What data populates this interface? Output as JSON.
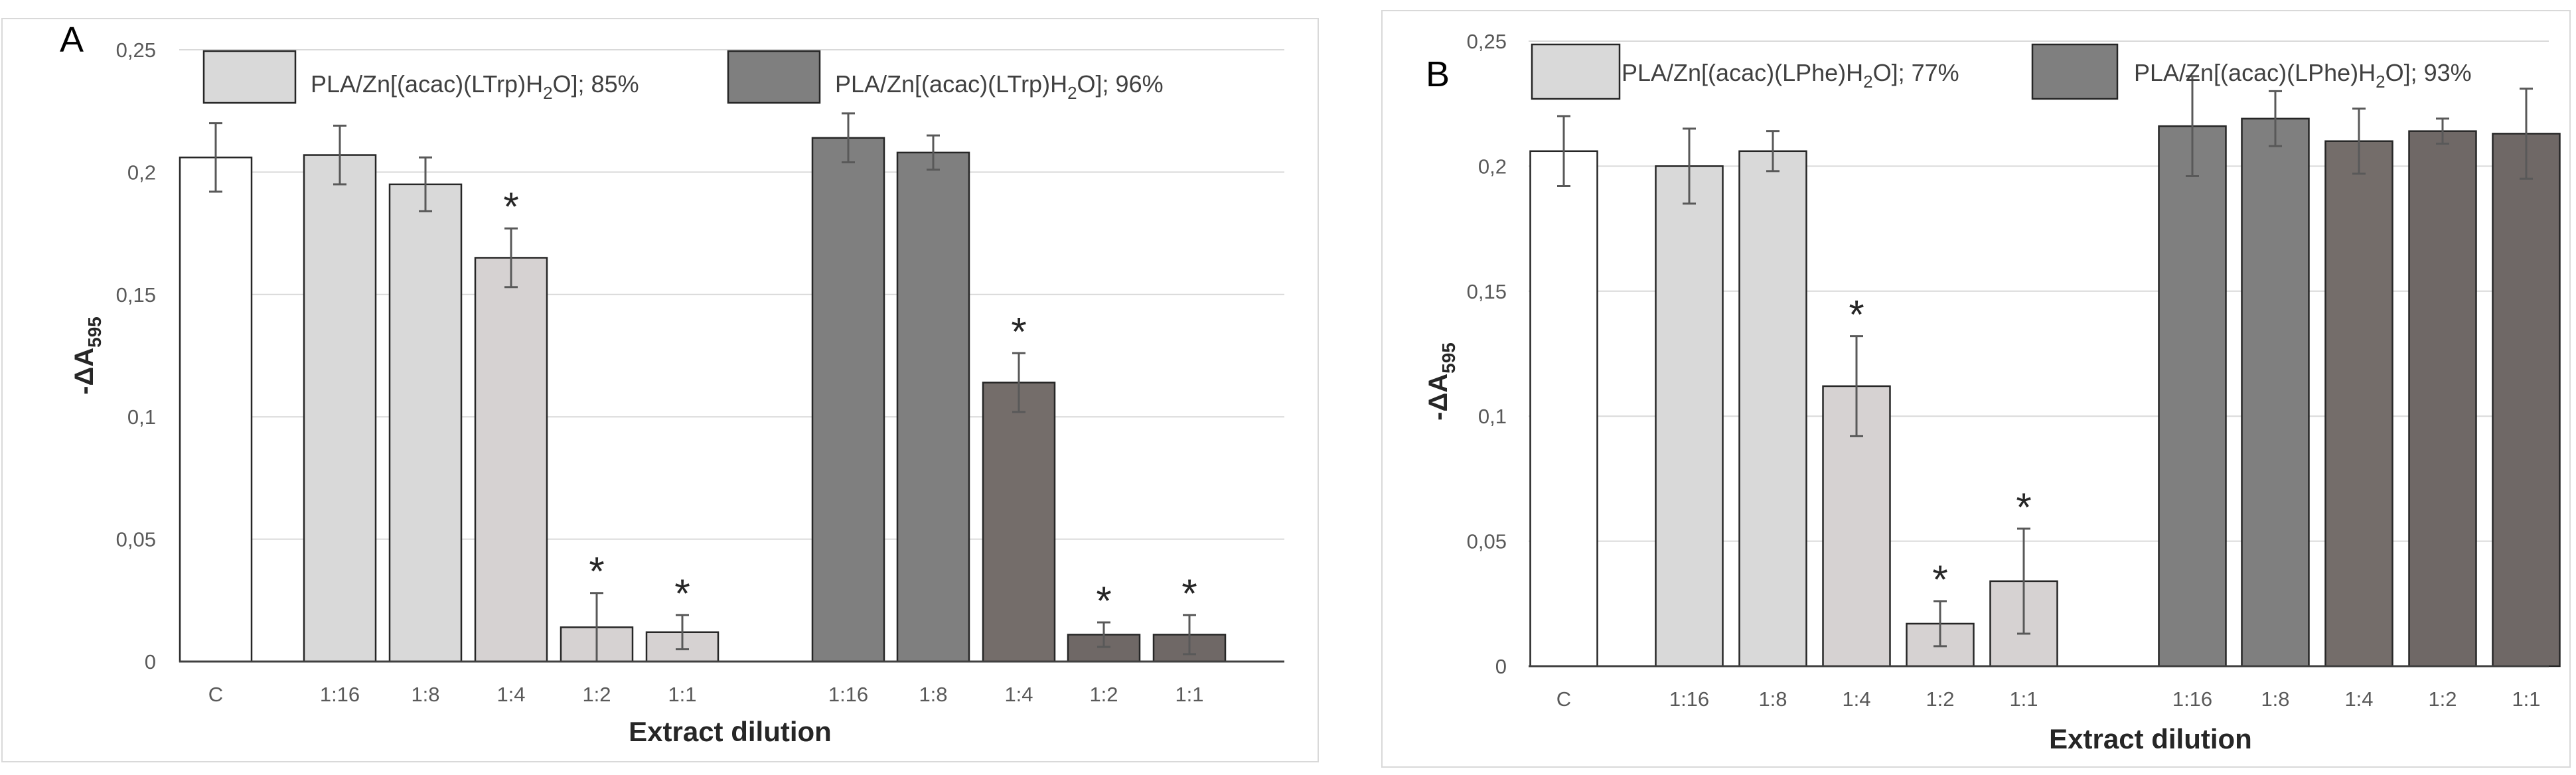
{
  "chart_data": [
    {
      "type": "bar",
      "panel_label": "A",
      "xlabel": "Extract dilution",
      "ylabel_main": "-ΔA",
      "ylabel_sub": "595",
      "ylim": [
        0,
        0.25
      ],
      "yticks": [
        0,
        0.05,
        0.1,
        0.15,
        0.2,
        0.25
      ],
      "ytick_labels": [
        "0",
        "0,05",
        "0,1",
        "0,15",
        "0,2",
        "0,25"
      ],
      "legend": [
        {
          "text": "PLA/Zn[(acac)(LTrp)H",
          "sub": "2",
          "tail": "O]; 85%",
          "color": "#d9d9d9"
        },
        {
          "text": "PLA/Zn[(acac)(LTrp)H",
          "sub": "2",
          "tail": "O]; 96%",
          "color": "#7f7f7f"
        }
      ],
      "bars": [
        {
          "label": "C",
          "value": 0.206,
          "error": 0.014,
          "star": false,
          "color": "#ffffff"
        },
        {
          "label": "1:16",
          "value": 0.207,
          "error": 0.012,
          "star": false,
          "color": "#d9d9d9"
        },
        {
          "label": "1:8",
          "value": 0.195,
          "error": 0.011,
          "star": false,
          "color": "#d9d9d9"
        },
        {
          "label": "1:4",
          "value": 0.165,
          "error": 0.012,
          "star": true,
          "color": "#d6d2d2"
        },
        {
          "label": "1:2",
          "value": 0.014,
          "error": 0.014,
          "star": true,
          "color": "#d6d2d2"
        },
        {
          "label": "1:1",
          "value": 0.012,
          "error": 0.007,
          "star": true,
          "color": "#d6d2d2"
        },
        {
          "label": "1:16",
          "value": 0.214,
          "error": 0.01,
          "star": false,
          "color": "#7f7f7f"
        },
        {
          "label": "1:8",
          "value": 0.208,
          "error": 0.007,
          "star": false,
          "color": "#7f7f7f"
        },
        {
          "label": "1:4",
          "value": 0.114,
          "error": 0.012,
          "star": true,
          "color": "#746d6a"
        },
        {
          "label": "1:2",
          "value": 0.011,
          "error": 0.005,
          "star": true,
          "color": "#6f6866"
        },
        {
          "label": "1:1",
          "value": 0.011,
          "error": 0.008,
          "star": true,
          "color": "#6f6866"
        }
      ]
    },
    {
      "type": "bar",
      "panel_label": "B",
      "xlabel": "Extract dilution",
      "ylabel_main": "-ΔA",
      "ylabel_sub": "595",
      "ylim": [
        0,
        0.25
      ],
      "yticks": [
        0,
        0.05,
        0.1,
        0.15,
        0.2,
        0.25
      ],
      "ytick_labels": [
        "0",
        "0,05",
        "0,1",
        "0,15",
        "0,2",
        "0,25"
      ],
      "legend": [
        {
          "text": "PLA/Zn[(acac)(LPhe)H",
          "sub": "2",
          "tail": "O]; 77%",
          "color": "#d9d9d9"
        },
        {
          "text": "PLA/Zn[(acac)(LPhe)H",
          "sub": "2",
          "tail": "O]; 93%",
          "color": "#7f7f7f"
        }
      ],
      "bars": [
        {
          "label": "C",
          "value": 0.206,
          "error": 0.014,
          "star": false,
          "color": "#ffffff"
        },
        {
          "label": "1:16",
          "value": 0.2,
          "error": 0.015,
          "star": false,
          "color": "#d9d9d9"
        },
        {
          "label": "1:8",
          "value": 0.206,
          "error": 0.008,
          "star": false,
          "color": "#d9d9d9"
        },
        {
          "label": "1:4",
          "value": 0.112,
          "error": 0.02,
          "star": true,
          "color": "#d6d2d2"
        },
        {
          "label": "1:2",
          "value": 0.017,
          "error": 0.009,
          "star": true,
          "color": "#d6d2d2"
        },
        {
          "label": "1:1",
          "value": 0.034,
          "error": 0.021,
          "star": true,
          "color": "#d6d2d2"
        },
        {
          "label": "1:16",
          "value": 0.216,
          "error": 0.02,
          "star": false,
          "color": "#7f7f7f"
        },
        {
          "label": "1:8",
          "value": 0.219,
          "error": 0.011,
          "star": false,
          "color": "#7f7f7f"
        },
        {
          "label": "1:4",
          "value": 0.21,
          "error": 0.013,
          "star": false,
          "color": "#746d6a"
        },
        {
          "label": "1:2",
          "value": 0.214,
          "error": 0.005,
          "star": false,
          "color": "#6f6866"
        },
        {
          "label": "1:1",
          "value": 0.213,
          "error": 0.018,
          "star": false,
          "color": "#6f6866"
        }
      ]
    }
  ]
}
